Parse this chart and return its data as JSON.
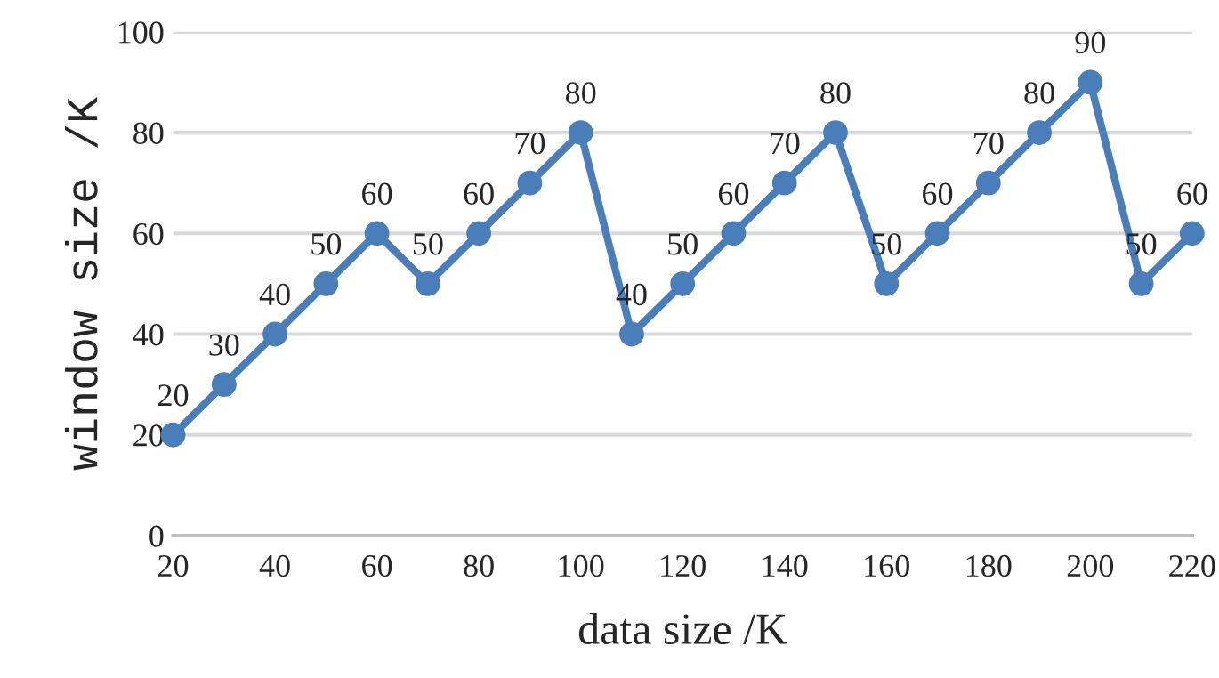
{
  "chart_data": {
    "type": "line",
    "xlabel": "data size /K",
    "ylabel": "window size /K",
    "x": [
      20,
      30,
      40,
      50,
      60,
      70,
      80,
      90,
      100,
      110,
      120,
      130,
      140,
      150,
      160,
      170,
      180,
      190,
      200,
      210,
      220
    ],
    "series": [
      {
        "color": "#4a7ebb",
        "values": [
          20,
          30,
          40,
          50,
          60,
          50,
          60,
          70,
          80,
          40,
          50,
          60,
          70,
          80,
          50,
          60,
          70,
          80,
          90,
          50,
          60
        ]
      }
    ],
    "xlim": [
      20,
      220
    ],
    "xticks": [
      20,
      40,
      60,
      80,
      100,
      120,
      140,
      160,
      180,
      200,
      220
    ],
    "ylim": [
      0,
      100
    ],
    "yticks": [
      0,
      20,
      40,
      60,
      80,
      100
    ],
    "grid": "y",
    "data_labels": true,
    "marker": "circle",
    "line_style": "solid",
    "legend": false
  }
}
